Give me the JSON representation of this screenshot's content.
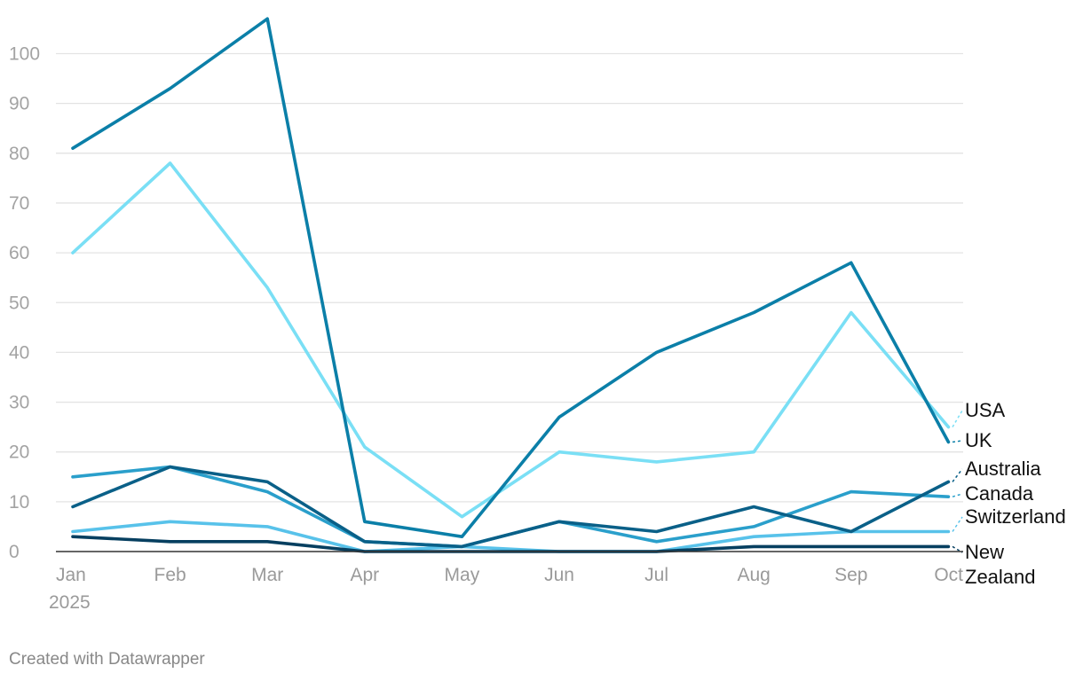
{
  "chart_data": {
    "type": "line",
    "title": "",
    "xlabel": "",
    "ylabel": "",
    "categories": [
      "Jan",
      "Feb",
      "Mar",
      "Apr",
      "May",
      "Jun",
      "Jul",
      "Aug",
      "Sep",
      "Oct"
    ],
    "year_label": "2025",
    "ylim": [
      0,
      107
    ],
    "yticks": [
      0,
      10,
      20,
      30,
      40,
      50,
      60,
      70,
      80,
      90,
      100
    ],
    "grid": true,
    "legend": "direct labels at right",
    "series": [
      {
        "name": "UK",
        "label_lines": [
          "UK"
        ],
        "color": "#0b7fa8",
        "values": [
          81,
          93,
          107,
          6,
          3,
          27,
          40,
          48,
          58,
          22
        ]
      },
      {
        "name": "USA",
        "label_lines": [
          "USA"
        ],
        "color": "#7adff5",
        "values": [
          60,
          78,
          53,
          21,
          7,
          20,
          18,
          20,
          48,
          25
        ]
      },
      {
        "name": "Canada",
        "label_lines": [
          "Canada"
        ],
        "color": "#2a9fcb",
        "values": [
          15,
          17,
          12,
          2,
          1,
          6,
          2,
          5,
          12,
          11
        ]
      },
      {
        "name": "Australia",
        "label_lines": [
          "Australia"
        ],
        "color": "#0a6088",
        "values": [
          9,
          17,
          14,
          2,
          1,
          6,
          4,
          9,
          4,
          14
        ]
      },
      {
        "name": "Switzerland",
        "label_lines": [
          "Switzerland"
        ],
        "color": "#58c2ea",
        "values": [
          4,
          6,
          5,
          0,
          1,
          0,
          0,
          3,
          4,
          4
        ]
      },
      {
        "name": "New Zealand",
        "label_lines": [
          "New",
          "Zealand"
        ],
        "color": "#063f60",
        "values": [
          3,
          2,
          2,
          0,
          0,
          0,
          0,
          1,
          1,
          1
        ]
      }
    ]
  },
  "footer": {
    "credit": "Created with Datawrapper"
  }
}
